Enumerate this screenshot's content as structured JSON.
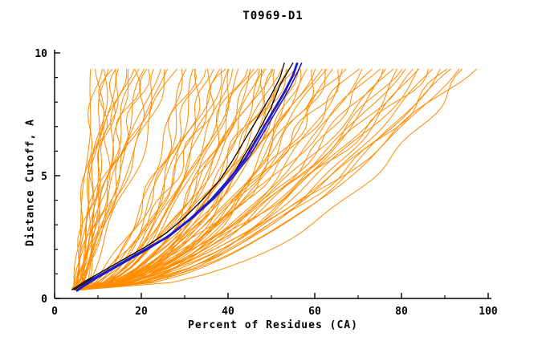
{
  "chart_data": {
    "type": "line",
    "title": "T0969-D1",
    "xlabel": "Percent of Residues (CA)",
    "ylabel": "Distance Cutoff, A",
    "xlim": [
      0,
      100
    ],
    "ylim": [
      0,
      10
    ],
    "x_major_ticks": [
      0,
      20,
      40,
      60,
      80,
      100
    ],
    "x_minor_ticks": [
      10,
      30,
      50,
      70,
      90
    ],
    "y_major_ticks": [
      0,
      5,
      10
    ],
    "y_minor_ticks": [
      1,
      2,
      3,
      4,
      6,
      7,
      8,
      9
    ],
    "grid": false,
    "legend": "none",
    "y_start": 0.35,
    "y_end": 9.6,
    "colors": {
      "ensemble": "#FF8C00",
      "black": "#000000",
      "blue": "#1C1CCD"
    },
    "ensemble_description": "Each curve = [x_at_bottom_percent, x_at_top_percent, shape_exponent]; orange model accuracy curves",
    "ensemble_curves": [
      [
        5,
        9,
        1.0
      ],
      [
        4.5,
        10,
        1.1
      ],
      [
        6,
        11,
        0.9
      ],
      [
        5,
        12,
        1.0
      ],
      [
        7,
        12,
        1.2
      ],
      [
        4,
        13,
        0.95
      ],
      [
        6,
        14,
        1.05
      ],
      [
        5,
        15,
        1.0
      ],
      [
        7,
        15,
        0.85
      ],
      [
        4.5,
        16,
        1.1
      ],
      [
        6,
        17,
        1.0
      ],
      [
        5,
        18,
        0.9
      ],
      [
        7,
        19,
        1.15
      ],
      [
        4,
        20,
        1.0
      ],
      [
        6,
        21,
        0.95
      ],
      [
        5,
        22,
        1.05
      ],
      [
        6.5,
        23,
        1.0
      ],
      [
        4,
        24,
        0.9
      ],
      [
        5.5,
        25,
        1.1
      ],
      [
        6,
        26,
        1.0
      ],
      [
        5,
        27,
        0.95
      ],
      [
        7,
        28,
        1.0
      ],
      [
        5,
        30,
        0.5
      ],
      [
        6,
        31,
        0.45
      ],
      [
        4,
        32,
        0.55
      ],
      [
        5.5,
        33,
        0.4
      ],
      [
        6,
        34,
        0.6
      ],
      [
        5,
        35,
        0.5
      ],
      [
        4.5,
        36,
        0.45
      ],
      [
        6,
        37,
        0.55
      ],
      [
        5,
        38,
        0.42
      ],
      [
        5.5,
        39,
        0.5
      ],
      [
        4,
        40,
        0.6
      ],
      [
        6,
        41,
        0.48
      ],
      [
        5,
        42,
        0.52
      ],
      [
        6.5,
        43,
        0.44
      ],
      [
        4.5,
        44,
        0.58
      ],
      [
        5,
        45,
        0.5
      ],
      [
        6,
        46,
        0.46
      ],
      [
        5.5,
        47,
        0.54
      ],
      [
        4,
        48,
        0.5
      ],
      [
        5,
        49,
        0.42
      ],
      [
        6,
        50,
        0.6
      ],
      [
        5,
        51,
        0.5
      ],
      [
        4.5,
        52,
        0.47
      ],
      [
        6,
        53,
        0.53
      ],
      [
        5.5,
        54,
        0.45
      ],
      [
        5,
        55,
        0.55
      ],
      [
        6,
        56,
        0.5
      ],
      [
        4,
        57,
        0.48
      ],
      [
        5,
        58,
        0.52
      ],
      [
        6.5,
        59,
        0.44
      ],
      [
        5,
        60,
        0.56
      ],
      [
        5.5,
        61,
        0.5
      ],
      [
        4.5,
        62,
        0.46
      ],
      [
        6,
        63,
        0.54
      ],
      [
        5,
        64,
        0.5
      ],
      [
        6,
        65,
        0.48
      ],
      [
        5,
        57,
        0.35
      ],
      [
        6,
        52,
        0.38
      ],
      [
        5,
        47,
        0.36
      ],
      [
        4.5,
        42,
        0.37
      ],
      [
        5,
        66,
        0.5
      ],
      [
        6,
        68,
        0.45
      ],
      [
        5.5,
        70,
        0.55
      ],
      [
        4.5,
        72,
        0.5
      ],
      [
        6,
        74,
        0.48
      ],
      [
        5,
        76,
        0.52
      ],
      [
        6.5,
        78,
        0.46
      ],
      [
        5,
        80,
        0.54
      ],
      [
        5.5,
        82,
        0.5
      ],
      [
        4.5,
        84,
        0.45
      ],
      [
        6,
        86,
        0.55
      ],
      [
        5,
        88,
        0.5
      ],
      [
        6,
        90,
        0.47
      ],
      [
        5.5,
        92,
        0.53
      ],
      [
        5,
        94,
        0.5
      ],
      [
        6,
        96,
        0.42
      ],
      [
        5,
        97,
        0.6
      ],
      [
        6,
        85,
        0.65
      ],
      [
        5,
        75,
        0.62
      ],
      [
        5.5,
        68,
        0.58
      ],
      [
        6,
        79,
        0.6
      ],
      [
        5,
        88,
        0.62
      ],
      [
        4.5,
        93,
        0.58
      ],
      [
        6,
        81,
        0.55
      ]
    ],
    "highlight_curves": [
      {
        "name": "black-model-1",
        "color": "#000000",
        "width": 1.3,
        "points": [
          [
            4,
            0.35
          ],
          [
            7,
            0.7
          ],
          [
            11,
            1.1
          ],
          [
            16,
            1.6
          ],
          [
            21,
            2.1
          ],
          [
            26,
            2.7
          ],
          [
            30,
            3.3
          ],
          [
            34,
            4.0
          ],
          [
            38,
            4.8
          ],
          [
            41,
            5.6
          ],
          [
            44,
            6.5
          ],
          [
            47,
            7.4
          ],
          [
            50,
            8.3
          ],
          [
            52,
            9.0
          ],
          [
            53,
            9.6
          ]
        ]
      },
      {
        "name": "black-model-2",
        "color": "#000000",
        "width": 1.3,
        "points": [
          [
            4.5,
            0.35
          ],
          [
            8,
            0.75
          ],
          [
            13,
            1.2
          ],
          [
            18,
            1.7
          ],
          [
            24,
            2.3
          ],
          [
            29,
            2.9
          ],
          [
            33,
            3.5
          ],
          [
            37,
            4.2
          ],
          [
            41,
            5.0
          ],
          [
            44,
            5.9
          ],
          [
            47,
            6.8
          ],
          [
            50,
            7.8
          ],
          [
            52,
            8.7
          ],
          [
            54,
            9.3
          ],
          [
            55,
            9.6
          ]
        ]
      },
      {
        "name": "blue-model-thick",
        "color": "#1C1CCD",
        "width": 2.8,
        "points": [
          [
            5,
            0.3
          ],
          [
            9,
            0.8
          ],
          [
            14,
            1.3
          ],
          [
            20,
            1.9
          ],
          [
            26,
            2.5
          ],
          [
            31,
            3.2
          ],
          [
            36,
            4.0
          ],
          [
            40,
            4.8
          ],
          [
            44,
            5.7
          ],
          [
            47,
            6.6
          ],
          [
            50,
            7.5
          ],
          [
            53,
            8.4
          ],
          [
            55,
            9.1
          ],
          [
            56,
            9.6
          ]
        ]
      },
      {
        "name": "blue-model-thin",
        "color": "#1C1CCD",
        "width": 1.6,
        "points": [
          [
            5,
            0.3
          ],
          [
            10,
            0.85
          ],
          [
            15,
            1.35
          ],
          [
            21,
            1.95
          ],
          [
            27,
            2.6
          ],
          [
            32,
            3.3
          ],
          [
            37,
            4.1
          ],
          [
            41,
            4.9
          ],
          [
            45,
            5.8
          ],
          [
            48,
            6.7
          ],
          [
            51,
            7.6
          ],
          [
            54,
            8.5
          ],
          [
            56,
            9.2
          ],
          [
            57,
            9.6
          ]
        ]
      }
    ]
  }
}
